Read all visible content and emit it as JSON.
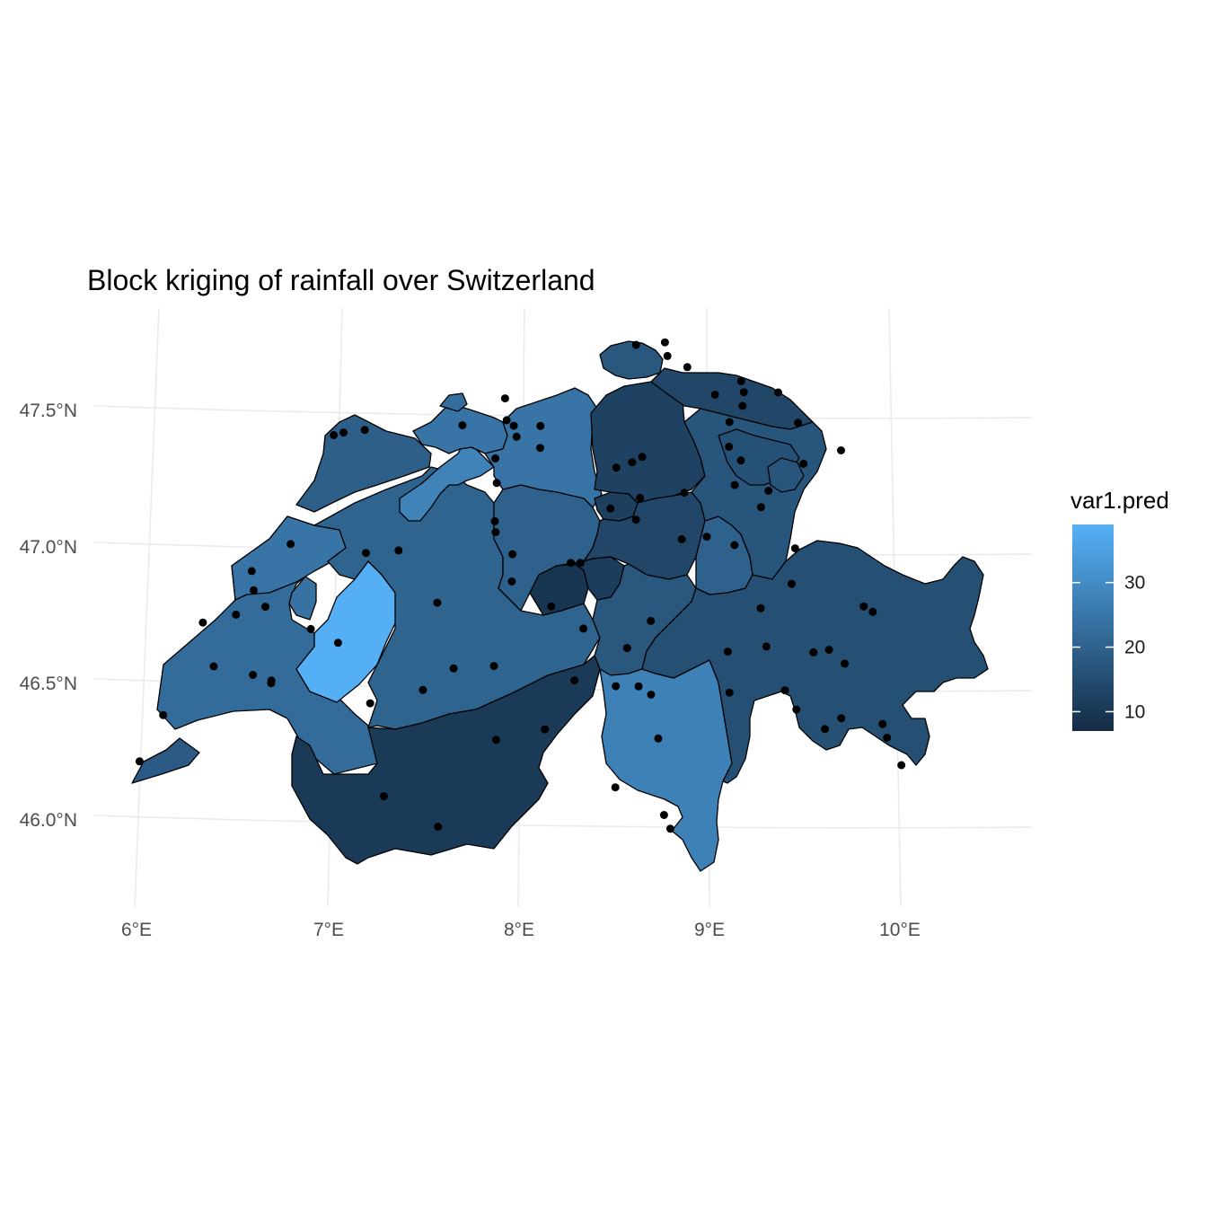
{
  "chart_data": {
    "type": "map",
    "title": "Block kriging of rainfall over Switzerland",
    "x_ticks": [
      "6°E",
      "7°E",
      "8°E",
      "9°E",
      "10°E"
    ],
    "y_ticks": [
      "47.5°N",
      "47.0°N",
      "46.5°N",
      "46.0°N"
    ],
    "legend": {
      "title": "var1.pred",
      "ticks": [
        {
          "value": 30,
          "label": "30"
        },
        {
          "value": 20,
          "label": "20"
        },
        {
          "value": 10,
          "label": "10"
        }
      ],
      "range": [
        7,
        39
      ],
      "low_color": "#132B43",
      "high_color": "#56B1F7",
      "placement": "right"
    },
    "regions": [
      {
        "name": "Genève",
        "value": 18.5
      },
      {
        "name": "Vaud",
        "value": 22.5
      },
      {
        "name": "Neuchâtel",
        "value": 24.5
      },
      {
        "name": "Jura",
        "value": 19.5
      },
      {
        "name": "Fribourg",
        "value": 38.5
      },
      {
        "name": "Vaud enclave",
        "value": 24.0
      },
      {
        "name": "Bern",
        "value": 20.5
      },
      {
        "name": "Valais",
        "value": 10.5
      },
      {
        "name": "Solothurn",
        "value": 28.0
      },
      {
        "name": "Basel-Landschaft",
        "value": 24.5
      },
      {
        "name": "Basel-Stadt",
        "value": 23.0
      },
      {
        "name": "Aargau",
        "value": 24.5
      },
      {
        "name": "Luzern",
        "value": 20.0
      },
      {
        "name": "Obwalden",
        "value": 9.5
      },
      {
        "name": "Nidwalden",
        "value": 11.5
      },
      {
        "name": "Zug",
        "value": 12.0
      },
      {
        "name": "Zürich",
        "value": 12.5
      },
      {
        "name": "Schaffhausen",
        "value": 17.5
      },
      {
        "name": "Thurgau",
        "value": 13.5
      },
      {
        "name": "Schwyz",
        "value": 13.5
      },
      {
        "name": "Uri",
        "value": 17.5
      },
      {
        "name": "Glarus",
        "value": 20.0
      },
      {
        "name": "St. Gallen",
        "value": 17.0
      },
      {
        "name": "Appenzell Ausserrhoden",
        "value": 16.0
      },
      {
        "name": "Appenzell Innerrhoden",
        "value": 17.0
      },
      {
        "name": "Ticino",
        "value": 27.5
      },
      {
        "name": "Graubünden",
        "value": 15.5
      }
    ],
    "stations": [
      [
        6.12,
        46.2
      ],
      [
        6.22,
        46.37
      ],
      [
        6.38,
        46.71
      ],
      [
        6.46,
        46.55
      ],
      [
        6.55,
        46.74
      ],
      [
        6.61,
        46.9
      ],
      [
        6.63,
        46.83
      ],
      [
        6.67,
        46.52
      ],
      [
        6.7,
        46.77
      ],
      [
        6.77,
        46.49
      ],
      [
        6.77,
        46.5
      ],
      [
        6.8,
        47.0
      ],
      [
        6.95,
        46.69
      ],
      [
        6.97,
        47.4
      ],
      [
        7.02,
        47.41
      ],
      [
        7.1,
        46.64
      ],
      [
        7.13,
        47.42
      ],
      [
        7.2,
        46.97
      ],
      [
        7.3,
        46.42
      ],
      [
        7.37,
        46.98
      ],
      [
        7.42,
        46.08
      ],
      [
        7.57,
        46.47
      ],
      [
        7.6,
        46.79
      ],
      [
        7.72,
        46.55
      ],
      [
        7.72,
        45.97
      ],
      [
        7.64,
        47.44
      ],
      [
        7.87,
        47.46
      ],
      [
        7.91,
        47.44
      ],
      [
        7.83,
        47.32
      ],
      [
        7.85,
        47.54
      ],
      [
        7.93,
        47.4
      ],
      [
        7.85,
        47.23
      ],
      [
        7.86,
        47.09
      ],
      [
        7.87,
        47.05
      ],
      [
        7.97,
        46.97
      ],
      [
        7.98,
        46.87
      ],
      [
        7.93,
        46.56
      ],
      [
        7.98,
        46.29
      ],
      [
        8.05,
        47.44
      ],
      [
        8.06,
        47.36
      ],
      [
        8.2,
        46.78
      ],
      [
        8.23,
        46.33
      ],
      [
        8.28,
        46.94
      ],
      [
        8.33,
        46.94
      ],
      [
        8.38,
        46.7
      ],
      [
        8.36,
        46.51
      ],
      [
        8.46,
        47.14
      ],
      [
        8.47,
        47.29
      ],
      [
        8.55,
        47.31
      ],
      [
        8.51,
        47.74
      ],
      [
        8.58,
        46.49
      ],
      [
        8.62,
        46.63
      ],
      [
        8.6,
        47.33
      ],
      [
        8.61,
        47.18
      ],
      [
        8.6,
        47.1
      ],
      [
        8.63,
        46.12
      ],
      [
        8.66,
        47.75
      ],
      [
        8.68,
        47.7
      ],
      [
        8.7,
        46.49
      ],
      [
        8.73,
        46.73
      ],
      [
        8.79,
        47.66
      ],
      [
        8.84,
        47.2
      ],
      [
        8.85,
        47.03
      ],
      [
        8.77,
        46.46
      ],
      [
        8.83,
        46.3
      ],
      [
        8.9,
        46.02
      ],
      [
        8.94,
        45.97
      ],
      [
        8.95,
        47.56
      ],
      [
        8.98,
        47.04
      ],
      [
        9.04,
        47.46
      ],
      [
        9.05,
        47.37
      ],
      [
        9.08,
        47.61
      ],
      [
        9.1,
        47.57
      ],
      [
        9.1,
        47.52
      ],
      [
        9.1,
        47.23
      ],
      [
        9.12,
        47.32
      ],
      [
        9.13,
        47.01
      ],
      [
        9.15,
        46.62
      ],
      [
        9.25,
        47.15
      ],
      [
        9.28,
        47.57
      ],
      [
        9.28,
        47.21
      ],
      [
        9.3,
        46.78
      ],
      [
        9.35,
        46.64
      ],
      [
        9.18,
        46.47
      ],
      [
        9.4,
        47.46
      ],
      [
        9.45,
        47.31
      ],
      [
        9.45,
        47.0
      ],
      [
        9.45,
        46.87
      ],
      [
        9.47,
        46.48
      ],
      [
        9.54,
        46.41
      ],
      [
        9.6,
        46.62
      ],
      [
        9.68,
        46.63
      ],
      [
        9.7,
        46.34
      ],
      [
        9.77,
        46.58
      ],
      [
        9.78,
        46.38
      ],
      [
        9.84,
        46.79
      ],
      [
        9.89,
        46.77
      ],
      [
        9.64,
        47.36
      ],
      [
        10.0,
        46.36
      ],
      [
        10.03,
        46.31
      ],
      [
        10.12,
        46.21
      ]
    ]
  }
}
